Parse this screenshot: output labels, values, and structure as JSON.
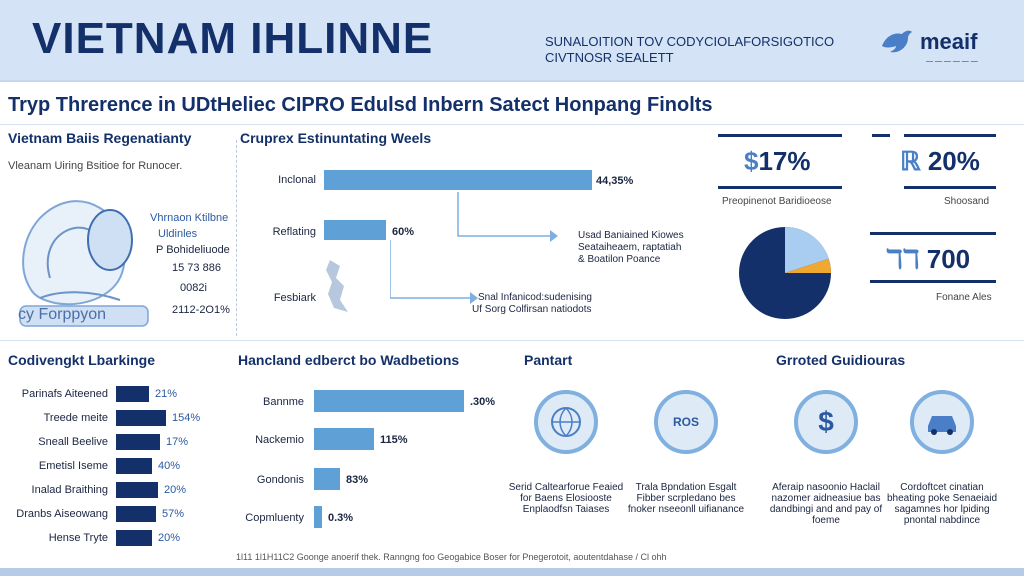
{
  "header": {
    "title": "VIETNAM IHLINNE",
    "subtitle_line1": "SUNALOITION TOV CODYCIOLAFORSIGOTICO",
    "subtitle_line2": "CIVTNOSR SEALETT",
    "logo_text": "meaif",
    "logo_sub": "— — — — — —"
  },
  "main_heading": "Tryp Threrence in UDtHeliec CIPRO Edulsd Inbern Satect Honpang Finolts",
  "left_panel": {
    "title": "Vietnam Baiis Regenatianty",
    "note": "Vleanam Uiring Bsitioe for Runocer.",
    "illustration_caption": "cy Forppyon",
    "lines": [
      "Vhrnaon Ktilbne",
      "Uldinles",
      "P Bohideliuode",
      "15 73 886",
      "0082i",
      "2112-2O1%"
    ]
  },
  "center_chart": {
    "title": "Cruprex Estinuntating Weels",
    "labels": [
      "Inclonal",
      "Reflating",
      "Fesbiark"
    ],
    "values_text": [
      "44,35%",
      "60%",
      ""
    ],
    "annotation1_lines": [
      "Usad Baniained Kiowes",
      "Seataiheaem, raptatiah",
      "& Boatilon Poance"
    ],
    "annotation2_lines": [
      "Snal Infanicod:sudenising",
      "Uf Sorg Colfirsan natiodots"
    ]
  },
  "stats": {
    "s1_value": "17%",
    "s1_caption": "Preopinenot Baridioeose",
    "s2_value": "20%",
    "s2_caption": "Shoosand",
    "s3_value": "700",
    "s3_caption": "Fonane Ales"
  },
  "pie_colors": [
    "#14306a",
    "#a9cdf0",
    "#f0a830"
  ],
  "bottom_left": {
    "title": "Codivengkt Lbarkinge",
    "labels": [
      "Parinafs Aiteened",
      "Treede meite",
      "Sneall Beelive",
      "Emetisl Iseme",
      "Inalad Braithing",
      "Dranbs Aiseowang",
      "Hense Tryte"
    ],
    "values": [
      "21%",
      "154%",
      "17%",
      "40%",
      "20%",
      "57%",
      "20%"
    ],
    "fill": [
      0.3,
      0.45,
      0.4,
      0.33,
      0.38,
      0.36,
      0.33
    ]
  },
  "bottom_mid": {
    "title": "Hancland edberct bo Wadbetions",
    "labels": [
      "Bannme",
      "Nackemio",
      "Gondonis",
      "Copmluenty"
    ],
    "values": [
      ".30%",
      "115%",
      "83%",
      "0.3%"
    ],
    "fill": [
      1.0,
      0.4,
      0.17,
      0.05
    ]
  },
  "pantart": {
    "title": "Pantart",
    "circles": [
      {
        "caption": "Serid Caltearforue Feaied for Baens Elosiooste Enplaodfsn Taiases"
      },
      {
        "caption": "Trala Bpndation Esgalt Fibber scrpledano bes fnoker nseeonll uifianance",
        "badge": "ROS"
      }
    ]
  },
  "guidance": {
    "title": "Grroted Guidiouras",
    "circles": [
      {
        "caption": "Aferaip nasoonio Haclail nazomer aidneasiue bas dandbingi and and pay of foeme",
        "symbol": "$"
      },
      {
        "caption": "Cordoftcet cinatian bheating poke Senaeiaid sagamnes hor lpiding pnontal nabdince"
      }
    ]
  },
  "footer": "1l11 1l1H11C2 Goonge anoerif thek. Ranngng foo Geogabice Boser for Pnegerotoit, aoutentdahase / Cl ohh"
}
